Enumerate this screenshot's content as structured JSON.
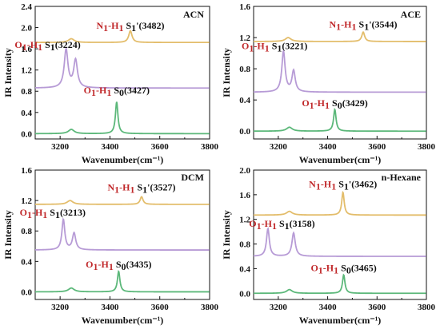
{
  "chart_data": [
    {
      "type": "line",
      "panel_label": "ACN",
      "xlabel": "Wavenumber(cm⁻¹)",
      "ylabel": "IR Intensity",
      "xlim": [
        3100,
        3800
      ],
      "ylim": [
        -0.1,
        2.4
      ],
      "xticks": [
        3200,
        3400,
        3600,
        3800
      ],
      "yticks": [
        0.0,
        0.4,
        0.8,
        1.2,
        1.6,
        2.0,
        2.4
      ],
      "ytick_labels": [
        "0.0",
        "0.4",
        "0.8",
        "1.2",
        "1.6",
        "2.0",
        "2.4"
      ],
      "series": [
        {
          "state": "S1'",
          "color": "#e3bd6b",
          "baseline": 1.72,
          "peaks": [
            [
              3245,
              0.07,
              14
            ],
            [
              3482,
              0.22,
              8
            ]
          ]
        },
        {
          "state": "S1",
          "color": "#b79bd6",
          "baseline": 0.86,
          "peaks": [
            [
              3224,
              0.72,
              9
            ],
            [
              3262,
              0.52,
              9
            ]
          ]
        },
        {
          "state": "S0",
          "color": "#5cb87a",
          "baseline": 0.0,
          "peaks": [
            [
              3245,
              0.08,
              14
            ],
            [
              3427,
              0.6,
              6
            ]
          ]
        }
      ],
      "annotations": [
        {
          "species": "N",
          "h": "H",
          "sub": "1",
          "state": "S",
          "state_sub": "1",
          "state_prime": "'",
          "value": "(3482)",
          "x": 3482,
          "y": 1.98
        },
        {
          "species": "O",
          "h": "H",
          "sub": "1",
          "state": "S",
          "state_sub": "1",
          "state_prime": "",
          "value": "(3224)",
          "x": 3150,
          "y": 1.62
        },
        {
          "species": "O",
          "h": "H",
          "sub": "1",
          "state": "S",
          "state_sub": "0",
          "state_prime": "",
          "value": "(3427)",
          "x": 3427,
          "y": 0.76
        }
      ]
    },
    {
      "type": "line",
      "panel_label": "ACE",
      "xlabel": "Wavenumber(cm⁻¹)",
      "ylabel": "IR Intensity",
      "xlim": [
        3100,
        3800
      ],
      "ylim": [
        -0.1,
        1.6
      ],
      "xticks": [
        3200,
        3400,
        3600,
        3800
      ],
      "yticks": [
        0.0,
        0.4,
        0.8,
        1.2,
        1.6
      ],
      "ytick_labels": [
        "0.0",
        "0.4",
        "0.8",
        "1.2",
        "1.6"
      ],
      "series": [
        {
          "state": "S1'",
          "color": "#e3bd6b",
          "baseline": 1.15,
          "peaks": [
            [
              3240,
              0.05,
              14
            ],
            [
              3544,
              0.12,
              7
            ]
          ]
        },
        {
          "state": "S1",
          "color": "#b79bd6",
          "baseline": 0.5,
          "peaks": [
            [
              3221,
              0.52,
              8
            ],
            [
              3262,
              0.27,
              8
            ]
          ]
        },
        {
          "state": "S0",
          "color": "#5cb87a",
          "baseline": 0.0,
          "peaks": [
            [
              3245,
              0.05,
              14
            ],
            [
              3429,
              0.28,
              6
            ]
          ]
        }
      ],
      "annotations": [
        {
          "species": "N",
          "h": "H",
          "sub": "1",
          "state": "S",
          "state_sub": "1",
          "state_prime": "'",
          "value": "(3544)",
          "x": 3544,
          "y": 1.33
        },
        {
          "species": "O",
          "h": "H",
          "sub": "1",
          "state": "S",
          "state_sub": "1",
          "state_prime": "",
          "value": "(3221)",
          "x": 3185,
          "y": 1.05
        },
        {
          "species": "O",
          "h": "H",
          "sub": "1",
          "state": "S",
          "state_sub": "0",
          "state_prime": "",
          "value": "(3429)",
          "x": 3429,
          "y": 0.32
        }
      ]
    },
    {
      "type": "line",
      "panel_label": "DCM",
      "xlabel": "Wavenumber(cm⁻¹)",
      "ylabel": "IR Intensity",
      "xlim": [
        3100,
        3800
      ],
      "ylim": [
        -0.1,
        1.6
      ],
      "xticks": [
        3200,
        3400,
        3600,
        3800
      ],
      "yticks": [
        0.0,
        0.4,
        0.8,
        1.2,
        1.6
      ],
      "ytick_labels": [
        "0.0",
        "0.4",
        "0.8",
        "1.2",
        "1.6"
      ],
      "series": [
        {
          "state": "S1'",
          "color": "#e3bd6b",
          "baseline": 1.15,
          "peaks": [
            [
              3240,
              0.05,
              14
            ],
            [
              3527,
              0.1,
              7
            ]
          ]
        },
        {
          "state": "S1",
          "color": "#b79bd6",
          "baseline": 0.55,
          "peaks": [
            [
              3213,
              0.4,
              7
            ],
            [
              3256,
              0.22,
              8
            ]
          ]
        },
        {
          "state": "S0",
          "color": "#5cb87a",
          "baseline": 0.0,
          "peaks": [
            [
              3245,
              0.05,
              14
            ],
            [
              3435,
              0.27,
              6
            ]
          ]
        }
      ],
      "annotations": [
        {
          "species": "N",
          "h": "H",
          "sub": "1",
          "state": "S",
          "state_sub": "1",
          "state_prime": "'",
          "value": "(3527)",
          "x": 3527,
          "y": 1.33
        },
        {
          "species": "O",
          "h": "H",
          "sub": "1",
          "state": "S",
          "state_sub": "1",
          "state_prime": "",
          "value": "(3213)",
          "x": 3170,
          "y": 1.0
        },
        {
          "species": "O",
          "h": "H",
          "sub": "1",
          "state": "S",
          "state_sub": "0",
          "state_prime": "",
          "value": "(3435)",
          "x": 3435,
          "y": 0.32
        }
      ]
    },
    {
      "type": "line",
      "panel_label": "n-Hexane",
      "xlabel": "Wavenumber(cm⁻¹)",
      "ylabel": "IR Intensity",
      "xlim": [
        3100,
        3800
      ],
      "ylim": [
        -0.1,
        2.0
      ],
      "xticks": [
        3200,
        3400,
        3600,
        3800
      ],
      "yticks": [
        0.0,
        0.4,
        0.8,
        1.2,
        1.6,
        2.0
      ],
      "ytick_labels": [
        "0.0",
        "0.4",
        "0.8",
        "1.2",
        "1.6",
        "2.0"
      ],
      "series": [
        {
          "state": "S1'",
          "color": "#e3bd6b",
          "baseline": 1.27,
          "peaks": [
            [
              3245,
              0.06,
              14
            ],
            [
              3462,
              0.37,
              6
            ]
          ]
        },
        {
          "state": "S1",
          "color": "#b79bd6",
          "baseline": 0.6,
          "peaks": [
            [
              3158,
              0.45,
              7
            ],
            [
              3262,
              0.38,
              8
            ]
          ]
        },
        {
          "state": "S0",
          "color": "#5cb87a",
          "baseline": 0.0,
          "peaks": [
            [
              3245,
              0.06,
              14
            ],
            [
              3465,
              0.3,
              6
            ]
          ]
        }
      ],
      "annotations": [
        {
          "species": "N",
          "h": "H",
          "sub": "1",
          "state": "S",
          "state_sub": "1",
          "state_prime": "'",
          "value": "(3462)",
          "x": 3462,
          "y": 1.72
        },
        {
          "species": "O",
          "h": "H",
          "sub": "1",
          "state": "S",
          "state_sub": "1",
          "state_prime": "",
          "value": "(3158)",
          "x": 3215,
          "y": 1.08
        },
        {
          "species": "O",
          "h": "H",
          "sub": "1",
          "state": "S",
          "state_sub": "0",
          "state_prime": "",
          "value": "(3465)",
          "x": 3465,
          "y": 0.36
        }
      ]
    }
  ]
}
